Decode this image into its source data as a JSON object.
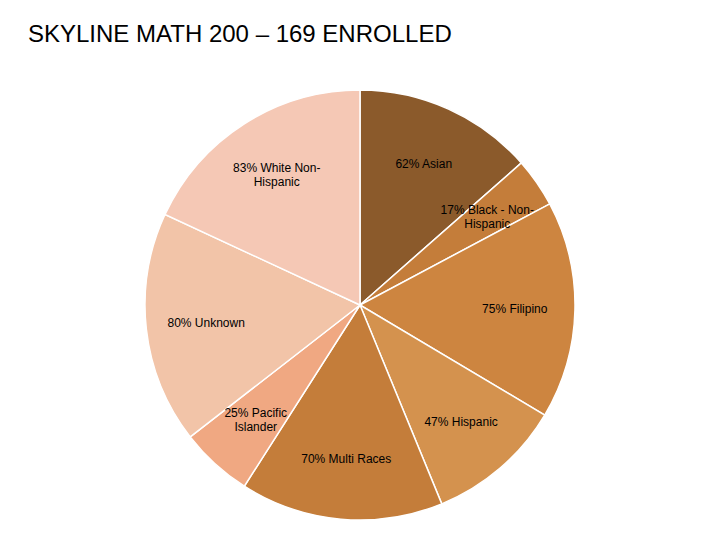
{
  "chart_data": {
    "type": "pie",
    "title": "SKYLINE MATH 200 – 169 ENROLLED",
    "categories": [
      "62% Asian",
      "17% Black - Non-\nHispanic",
      "75% Filipino",
      "47% Hispanic",
      "70% Multi Races",
      "25% Pacific\nIslander",
      "80% Unknown",
      "83% White Non-\nHispanic"
    ],
    "values": [
      62,
      17,
      75,
      47,
      70,
      25,
      80,
      83
    ],
    "colors": [
      "#8B5A2B",
      "#C47D3A",
      "#CD8540",
      "#D4924E",
      "#C47D3A",
      "#F0A882",
      "#F2C4A8",
      "#F5C8B5"
    ]
  }
}
